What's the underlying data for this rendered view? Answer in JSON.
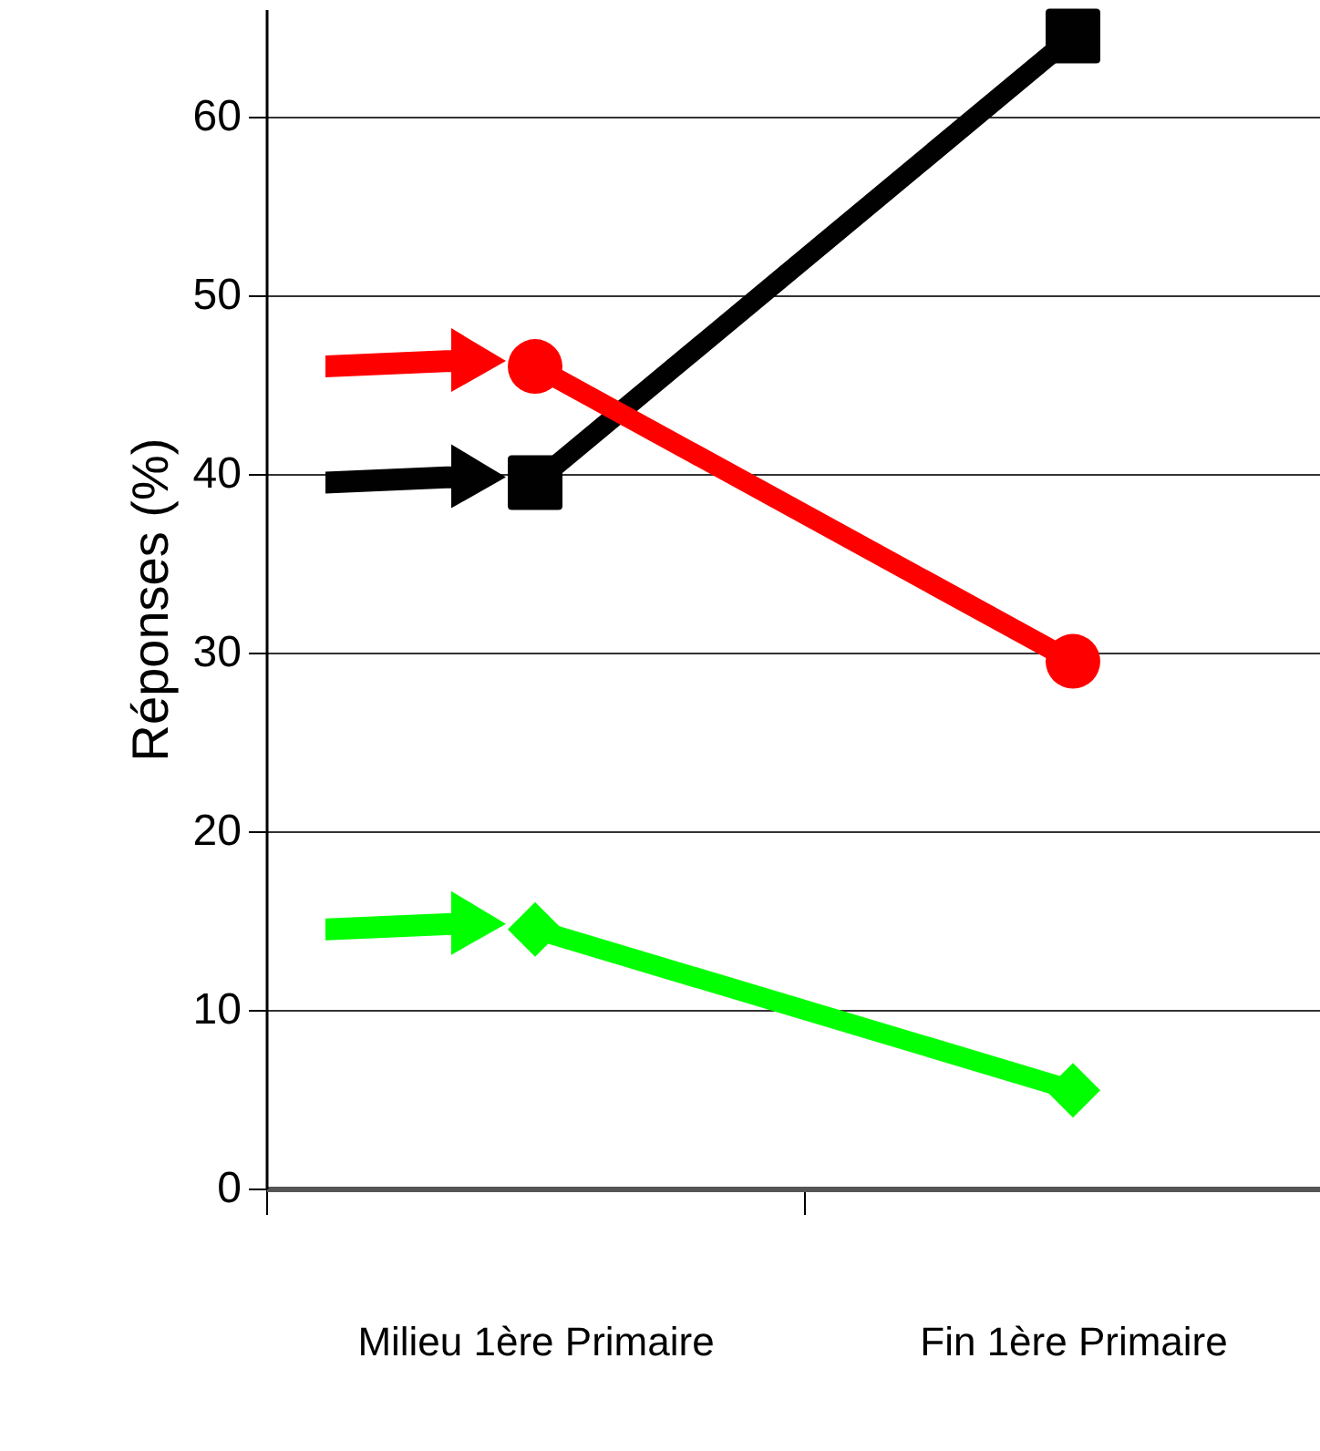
{
  "chart_data": {
    "type": "line",
    "ylabel": "Réponses (%)",
    "categories": [
      "Milieu 1ère Primaire",
      "Fin 1ère Primaire"
    ],
    "series": [
      {
        "color": "#010101",
        "marker": "square",
        "values": [
          39.5,
          64.5
        ]
      },
      {
        "color": "#ff0000",
        "marker": "circle",
        "values": [
          46,
          29.5
        ]
      },
      {
        "color": "#00ff00",
        "marker": "diamond",
        "values": [
          14.5,
          5.5
        ]
      }
    ],
    "ylim": [
      0,
      66
    ],
    "yticks": [
      0,
      10,
      20,
      30,
      40,
      50,
      60
    ],
    "grid": "y"
  }
}
